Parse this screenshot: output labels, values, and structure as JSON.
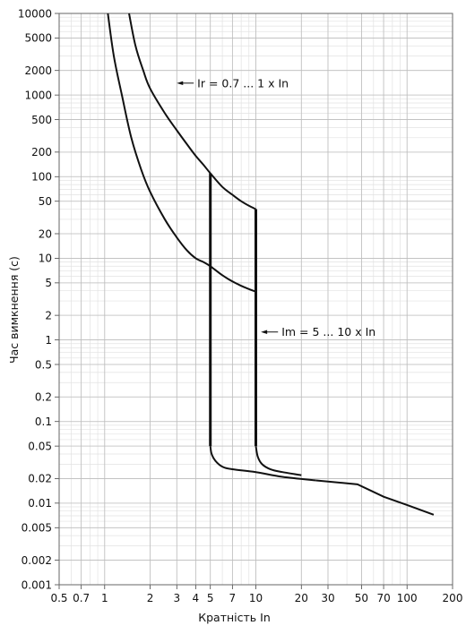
{
  "chart_data": {
    "type": "line",
    "title": "",
    "xlabel": "Кратність In",
    "ylabel": "Час вимкнення (с)",
    "x_scale": "log",
    "y_scale": "log",
    "xlim": [
      0.5,
      200
    ],
    "ylim": [
      0.001,
      10000
    ],
    "grid": true,
    "x_ticks": [
      {
        "v": 0.5,
        "label": "0.5"
      },
      {
        "v": 0.7,
        "label": "0.7"
      },
      {
        "v": 1,
        "label": "1"
      },
      {
        "v": 2,
        "label": "2"
      },
      {
        "v": 3,
        "label": "3"
      },
      {
        "v": 4,
        "label": "4"
      },
      {
        "v": 5,
        "label": "5"
      },
      {
        "v": 7,
        "label": "7"
      },
      {
        "v": 10,
        "label": "10"
      },
      {
        "v": 20,
        "label": "20"
      },
      {
        "v": 30,
        "label": "30"
      },
      {
        "v": 50,
        "label": "50"
      },
      {
        "v": 70,
        "label": "70"
      },
      {
        "v": 100,
        "label": "100"
      },
      {
        "v": 200,
        "label": "200"
      }
    ],
    "y_ticks": [
      {
        "v": 0.001,
        "label": "0.001"
      },
      {
        "v": 0.002,
        "label": "0.002"
      },
      {
        "v": 0.005,
        "label": "0.005"
      },
      {
        "v": 0.01,
        "label": "0.01"
      },
      {
        "v": 0.02,
        "label": "0.02"
      },
      {
        "v": 0.05,
        "label": "0.05"
      },
      {
        "v": 0.1,
        "label": "0.1"
      },
      {
        "v": 0.2,
        "label": "0.2"
      },
      {
        "v": 0.5,
        "label": "0.5"
      },
      {
        "v": 1,
        "label": "1"
      },
      {
        "v": 2,
        "label": "2"
      },
      {
        "v": 5,
        "label": "5"
      },
      {
        "v": 10,
        "label": "10"
      },
      {
        "v": 20,
        "label": "20"
      },
      {
        "v": 50,
        "label": "50"
      },
      {
        "v": 100,
        "label": "100"
      },
      {
        "v": 200,
        "label": "200"
      },
      {
        "v": 500,
        "label": "500"
      },
      {
        "v": 1000,
        "label": "1000"
      },
      {
        "v": 2000,
        "label": "2000"
      },
      {
        "v": 5000,
        "label": "5000"
      },
      {
        "v": 10000,
        "label": "10000"
      }
    ],
    "series": [
      {
        "key": "upper-thermal",
        "stroke": "#111111",
        "points": [
          [
            1.45,
            10000
          ],
          [
            1.6,
            4000
          ],
          [
            1.8,
            2000
          ],
          [
            2.0,
            1200
          ],
          [
            2.5,
            600
          ],
          [
            3.0,
            370
          ],
          [
            3.5,
            250
          ],
          [
            4.0,
            180
          ],
          [
            4.5,
            140
          ],
          [
            5.0,
            110
          ],
          [
            6.0,
            75
          ],
          [
            7.0,
            60
          ],
          [
            8.0,
            50
          ],
          [
            9.0,
            44
          ],
          [
            10.0,
            40
          ]
        ]
      },
      {
        "key": "lower-thermal",
        "stroke": "#111111",
        "points": [
          [
            1.05,
            10000
          ],
          [
            1.15,
            3000
          ],
          [
            1.3,
            1000
          ],
          [
            1.5,
            300
          ],
          [
            1.75,
            120
          ],
          [
            2.0,
            65
          ],
          [
            2.5,
            30
          ],
          [
            3.0,
            18
          ],
          [
            3.5,
            12.5
          ],
          [
            4.0,
            10
          ],
          [
            4.5,
            9
          ],
          [
            5.0,
            8
          ],
          [
            6.0,
            6.2
          ],
          [
            7.0,
            5.2
          ],
          [
            8.0,
            4.6
          ],
          [
            9.0,
            4.2
          ],
          [
            10.0,
            3.9
          ]
        ]
      },
      {
        "key": "magnetic-trip",
        "stroke": "#111111",
        "points": [
          [
            5,
            110
          ],
          [
            5,
            0.05
          ],
          [
            5.1,
            0.04
          ],
          [
            5.4,
            0.033
          ],
          [
            6.0,
            0.028
          ],
          [
            7.0,
            0.026
          ],
          [
            10,
            0.024
          ],
          [
            15,
            0.021
          ],
          [
            25,
            0.019
          ],
          [
            47,
            0.017
          ],
          [
            70,
            0.012
          ],
          [
            100,
            0.0095
          ],
          [
            150,
            0.0072
          ]
        ]
      },
      {
        "key": "magnetic-trip-upper",
        "stroke": "#111111",
        "points": [
          [
            10,
            40
          ],
          [
            10,
            0.05
          ],
          [
            10.3,
            0.037
          ],
          [
            11,
            0.03
          ],
          [
            12.5,
            0.026
          ],
          [
            15,
            0.024
          ],
          [
            20,
            0.022
          ]
        ]
      }
    ],
    "annotations": [
      {
        "key": "ir",
        "text": "Ir = 0.7 ... 1 x In",
        "at": [
          4.1,
          1400
        ],
        "arrow_from": [
          4.1,
          1400
        ],
        "arrow_to": [
          3.0,
          1400
        ]
      },
      {
        "key": "im",
        "text": "Im = 5 ... 10 x In",
        "at": [
          14.8,
          1.25
        ],
        "arrow_from": [
          14.8,
          1.25
        ],
        "arrow_to": [
          10.8,
          1.25
        ]
      }
    ]
  }
}
